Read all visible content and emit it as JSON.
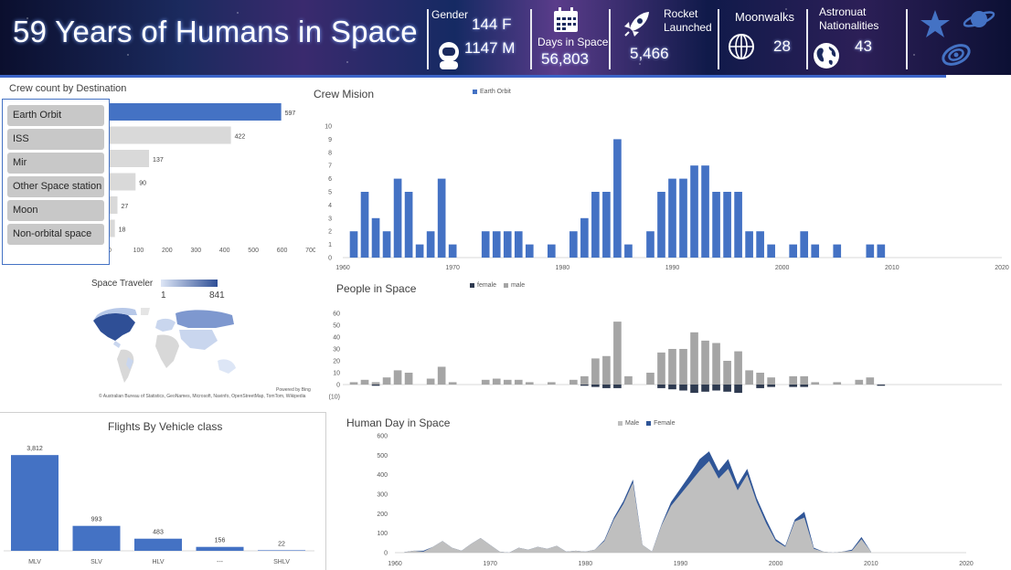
{
  "header": {
    "title": "59 Years of Humans in Space",
    "gender_label": "Gender",
    "gender_female": "144 F",
    "gender_male": "1147 M",
    "days_label": "Days in Space",
    "days_value": "56,803",
    "rocket_label_1": "Rocket",
    "rocket_label_2": "Launched",
    "rocket_value": "5,466",
    "moonwalks_label": "Moonwalks",
    "moonwalks_value": "28",
    "nationalities_label_1": "Astronuat",
    "nationalities_label_2": "Nationalities",
    "nationalities_value": "43",
    "icons": [
      "astronaut-icon",
      "calendar-icon",
      "rocket-icon",
      "globe-grid-icon",
      "earth-icon",
      "star-icon",
      "planet-icon",
      "galaxy-icon"
    ],
    "accent_color": "#4472c4"
  },
  "slicer": {
    "items": [
      {
        "label": "Earth Orbit",
        "selected": true
      },
      {
        "label": "ISS",
        "selected": false
      },
      {
        "label": "Mir",
        "selected": false
      },
      {
        "label": "Other Space station",
        "selected": false
      },
      {
        "label": "Moon",
        "selected": false
      },
      {
        "label": "Non-orbital space",
        "selected": false
      }
    ]
  },
  "map": {
    "legend_title": "Space Traveler",
    "legend_min": "1",
    "legend_max": "841",
    "powered_by": "Powered by Bing",
    "attribution": "© Australian Bureau of Statistics, GeoNames, Microsoft, Navinfo, OpenStreetMap, TomTom, Wikipedia"
  },
  "chart_data": [
    {
      "id": "crew-by-destination",
      "type": "bar",
      "orientation": "horizontal",
      "title": "Crew count by Destination",
      "categories": [
        "Earth Orbit",
        "ISS",
        "Mir",
        "Other Space station",
        "Moon",
        "Non-orbital space"
      ],
      "values": [
        597,
        422,
        137,
        90,
        27,
        18
      ],
      "value_labels": [
        "597",
        "422",
        "137",
        "90",
        "27",
        "18"
      ],
      "xlim": [
        0,
        700
      ],
      "xticks": [
        "0",
        "100",
        "200",
        "300",
        "400",
        "500",
        "600",
        "700"
      ],
      "colors": [
        "#4472c4",
        "#d9d9d9"
      ]
    },
    {
      "id": "crew-mission",
      "type": "bar",
      "title": "Crew Mision",
      "legend": [
        "Earth Orbit"
      ],
      "color": "#4472c4",
      "ylim": [
        0,
        10
      ],
      "yticks": [
        "0",
        "1",
        "2",
        "3",
        "4",
        "5",
        "6",
        "7",
        "8",
        "9",
        "10"
      ],
      "xlim": [
        1960,
        2020
      ],
      "xticks": [
        "1960",
        "1970",
        "1980",
        "1990",
        "2000",
        "2010",
        "2020"
      ],
      "x": [
        1961,
        1962,
        1963,
        1964,
        1965,
        1966,
        1967,
        1968,
        1969,
        1970,
        1971,
        1972,
        1973,
        1974,
        1975,
        1976,
        1977,
        1978,
        1979,
        1980,
        1981,
        1982,
        1983,
        1984,
        1985,
        1986,
        1987,
        1988,
        1989,
        1990,
        1991,
        1992,
        1993,
        1994,
        1995,
        1996,
        1997,
        1998,
        1999,
        2000,
        2001,
        2002,
        2003,
        2004,
        2005,
        2006,
        2007,
        2008,
        2009,
        2010
      ],
      "values": [
        2,
        5,
        3,
        2,
        6,
        5,
        1,
        2,
        6,
        1,
        0,
        0,
        2,
        2,
        2,
        2,
        1,
        0,
        1,
        0,
        2,
        3,
        5,
        5,
        9,
        1,
        0,
        2,
        5,
        6,
        6,
        7,
        7,
        5,
        5,
        5,
        2,
        2,
        1,
        0,
        1,
        2,
        1,
        0,
        1,
        0,
        0,
        1,
        1,
        0
      ]
    },
    {
      "id": "people-in-space",
      "type": "bar",
      "title": "People in Space",
      "legend": [
        "female",
        "male"
      ],
      "colors": {
        "female": "#2e3a50",
        "male": "#a5a5a5"
      },
      "ylim": [
        -10,
        60
      ],
      "yticks": [
        "(10)",
        "0",
        "10",
        "20",
        "30",
        "40",
        "50",
        "60"
      ],
      "xlim": [
        1960,
        2020
      ],
      "x": [
        1961,
        1962,
        1963,
        1964,
        1965,
        1966,
        1967,
        1968,
        1969,
        1970,
        1971,
        1972,
        1973,
        1974,
        1975,
        1976,
        1977,
        1978,
        1979,
        1980,
        1981,
        1982,
        1983,
        1984,
        1985,
        1986,
        1987,
        1988,
        1989,
        1990,
        1991,
        1992,
        1993,
        1994,
        1995,
        1996,
        1997,
        1998,
        1999,
        2000,
        2001,
        2002,
        2003,
        2004,
        2005,
        2006,
        2007,
        2008,
        2009,
        2010
      ],
      "series": [
        {
          "name": "male",
          "values": [
            2,
            4,
            2,
            6,
            12,
            10,
            0,
            5,
            15,
            2,
            0,
            0,
            4,
            5,
            4,
            4,
            2,
            0,
            2,
            0,
            4,
            7,
            22,
            24,
            53,
            7,
            0,
            10,
            27,
            30,
            30,
            44,
            37,
            35,
            20,
            28,
            12,
            10,
            6,
            0,
            7,
            7,
            2,
            0,
            2,
            0,
            4,
            6,
            0,
            0
          ]
        },
        {
          "name": "female",
          "values": [
            0,
            0,
            -1,
            0,
            0,
            0,
            0,
            0,
            0,
            0,
            0,
            0,
            0,
            0,
            0,
            0,
            0,
            0,
            0,
            0,
            0,
            -1,
            -2,
            -3,
            -3,
            0,
            0,
            0,
            -3,
            -4,
            -5,
            -7,
            -6,
            -5,
            -6,
            -7,
            0,
            -3,
            -2,
            0,
            -2,
            -2,
            0,
            0,
            0,
            0,
            0,
            0,
            -1,
            0
          ]
        }
      ]
    },
    {
      "id": "flights-by-vehicle",
      "type": "bar",
      "title": "Flights By Vehicle class",
      "categories": [
        "MLV",
        "SLV",
        "HLV",
        "---",
        "SHLV"
      ],
      "values": [
        3812,
        993,
        483,
        156,
        22
      ],
      "value_labels": [
        "3,812",
        "993",
        "483",
        "156",
        "22"
      ],
      "ylim": [
        0,
        4000
      ],
      "color": "#4472c4"
    },
    {
      "id": "human-day-in-space",
      "type": "area",
      "title": "Human Day in Space",
      "legend": [
        "Male",
        "Female"
      ],
      "colors": {
        "Male": "#bfbfbf",
        "Female": "#2f5597"
      },
      "ylim": [
        0,
        600
      ],
      "yticks": [
        "0",
        "100",
        "200",
        "300",
        "400",
        "500",
        "600"
      ],
      "xlim": [
        1960,
        2020
      ],
      "xticks": [
        "1960",
        "1970",
        "1980",
        "1990",
        "2000",
        "2010",
        "2020"
      ],
      "x": [
        1961,
        1962,
        1963,
        1964,
        1965,
        1966,
        1967,
        1968,
        1969,
        1970,
        1971,
        1972,
        1973,
        1974,
        1975,
        1976,
        1977,
        1978,
        1979,
        1980,
        1981,
        1982,
        1983,
        1984,
        1985,
        1986,
        1987,
        1988,
        1989,
        1990,
        1991,
        1992,
        1993,
        1994,
        1995,
        1996,
        1997,
        1998,
        1999,
        2000,
        2001,
        2002,
        2003,
        2004,
        2005,
        2006,
        2007,
        2008,
        2009,
        2010
      ],
      "series": [
        {
          "name": "Male",
          "values": [
            3,
            10,
            5,
            30,
            60,
            25,
            10,
            45,
            75,
            40,
            5,
            0,
            25,
            15,
            30,
            20,
            35,
            5,
            10,
            5,
            15,
            60,
            170,
            250,
            360,
            40,
            5,
            140,
            240,
            300,
            360,
            420,
            470,
            380,
            430,
            320,
            400,
            260,
            150,
            60,
            30,
            160,
            180,
            20,
            5,
            0,
            5,
            10,
            70,
            5
          ]
        },
        {
          "name": "Female",
          "values": [
            0,
            0,
            5,
            0,
            0,
            0,
            0,
            0,
            0,
            0,
            0,
            0,
            0,
            0,
            0,
            0,
            0,
            0,
            0,
            0,
            0,
            5,
            10,
            15,
            15,
            0,
            0,
            5,
            20,
            30,
            40,
            60,
            50,
            40,
            50,
            30,
            30,
            20,
            20,
            10,
            5,
            10,
            30,
            5,
            0,
            0,
            0,
            5,
            10,
            0
          ]
        }
      ]
    }
  ]
}
